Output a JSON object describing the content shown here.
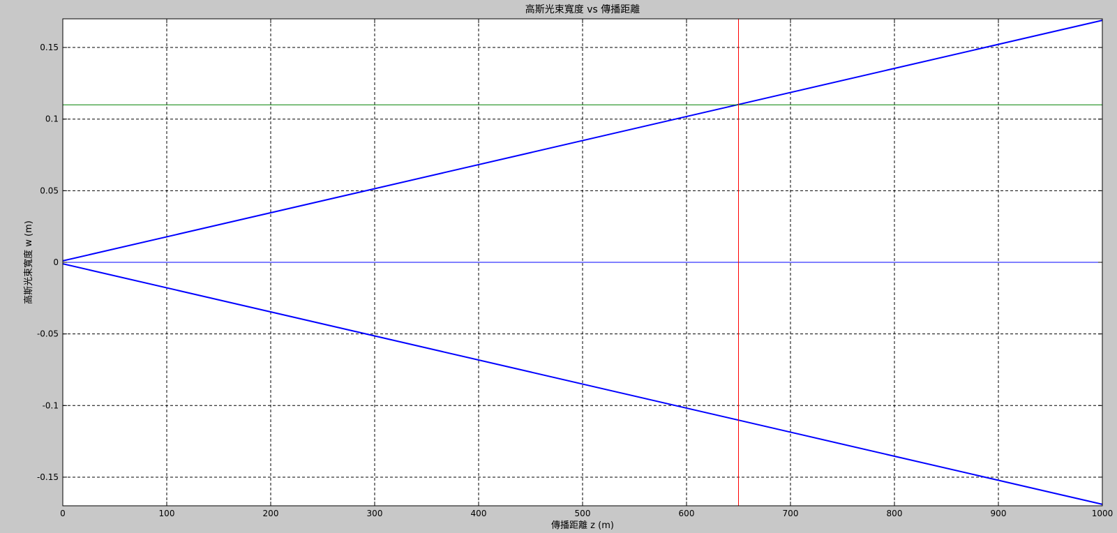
{
  "chart_data": {
    "type": "line",
    "title": "高斯光束寬度 vs 傳播距離",
    "xlabel": "傳播距離 z (m)",
    "ylabel": "高斯光束寬度 w (m)",
    "xlim": [
      0,
      1000
    ],
    "ylim": [
      -0.17,
      0.17
    ],
    "xticks": [
      0,
      100,
      200,
      300,
      400,
      500,
      600,
      700,
      800,
      900,
      1000
    ],
    "yticks": [
      -0.15,
      -0.1,
      -0.05,
      0,
      0.05,
      0.1,
      0.15
    ],
    "xtick_labels": [
      "0",
      "100",
      "200",
      "300",
      "400",
      "500",
      "600",
      "700",
      "800",
      "900",
      "1000"
    ],
    "ytick_labels": [
      "-0.15",
      "-0.1",
      "-0.05",
      "0",
      "0.05",
      "0.1",
      "0.15"
    ],
    "grid": true,
    "grid_style": "dashed",
    "series": [
      {
        "color": "#0000ff",
        "x": [
          0,
          1000
        ],
        "y": [
          0.001,
          0.169
        ]
      },
      {
        "color": "#0000ff",
        "x": [
          0,
          1000
        ],
        "y": [
          -0.001,
          -0.169
        ]
      },
      {
        "color": "#0000ff",
        "x": [
          0,
          1000
        ],
        "y": [
          0,
          0
        ]
      },
      {
        "color": "#008000",
        "x": [
          0,
          1000
        ],
        "y": [
          0.11,
          0.11
        ]
      },
      {
        "color": "#ff0000",
        "x": [
          650,
          650
        ],
        "y": [
          -0.17,
          0.17
        ]
      }
    ]
  }
}
